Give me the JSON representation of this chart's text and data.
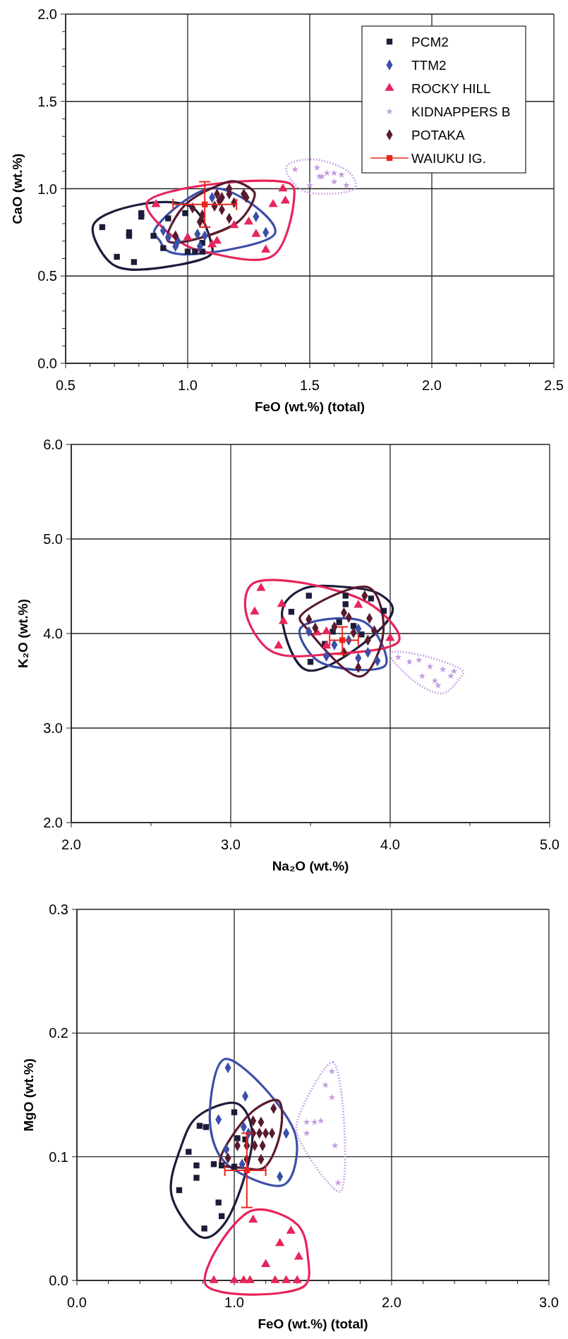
{
  "chart_data": [
    {
      "type": "scatter",
      "xlabel": "FeO (wt.%) (total)",
      "ylabel": "CaO (wt.%)",
      "xlim": [
        0.5,
        2.5
      ],
      "ylim": [
        0,
        2
      ],
      "grid": true,
      "legend": "top right",
      "xticks": [
        {
          "value": 0.5,
          "label": "0.5"
        },
        {
          "value": 0.6,
          "label": null
        },
        {
          "value": 0.7,
          "label": null
        },
        {
          "value": 0.8,
          "label": null
        },
        {
          "value": 0.9,
          "label": null
        },
        {
          "value": 1,
          "label": "1.0"
        },
        {
          "value": 1.1,
          "label": null
        },
        {
          "value": 1.2,
          "label": null
        },
        {
          "value": 1.3,
          "label": null
        },
        {
          "value": 1.4,
          "label": null
        },
        {
          "value": 1.5,
          "label": "1.5"
        },
        {
          "value": 1.6,
          "label": null
        },
        {
          "value": 1.7,
          "label": null
        },
        {
          "value": 1.8,
          "label": null
        },
        {
          "value": 1.9,
          "label": null
        },
        {
          "value": 2,
          "label": "2.0"
        },
        {
          "value": 2.1,
          "label": null
        },
        {
          "value": 2.2,
          "label": null
        },
        {
          "value": 2.3,
          "label": null
        },
        {
          "value": 2.4,
          "label": null
        },
        {
          "value": 2.5,
          "label": "2.5"
        }
      ],
      "yticks": [
        {
          "value": 0,
          "label": "0.0"
        },
        {
          "value": 0.1,
          "label": null
        },
        {
          "value": 0.2,
          "label": null
        },
        {
          "value": 0.3,
          "label": null
        },
        {
          "value": 0.4,
          "label": null
        },
        {
          "value": 0.5,
          "label": "0.5"
        },
        {
          "value": 0.6,
          "label": null
        },
        {
          "value": 0.7,
          "label": null
        },
        {
          "value": 0.8,
          "label": null
        },
        {
          "value": 0.9,
          "label": null
        },
        {
          "value": 1,
          "label": "1.0"
        },
        {
          "value": 1.1,
          "label": null
        },
        {
          "value": 1.2,
          "label": null
        },
        {
          "value": 1.3,
          "label": null
        },
        {
          "value": 1.4,
          "label": null
        },
        {
          "value": 1.5,
          "label": "1.5"
        },
        {
          "value": 1.6,
          "label": null
        },
        {
          "value": 1.7,
          "label": null
        },
        {
          "value": 1.8,
          "label": null
        },
        {
          "value": 1.9,
          "label": null
        },
        {
          "value": 2,
          "label": "2.0"
        }
      ],
      "series": [
        {
          "name": "PCM2",
          "color": "#1c1c3a",
          "marker": "square",
          "x": [
            0.65,
            0.71,
            0.76,
            0.76,
            0.78,
            0.81,
            0.81,
            0.86,
            0.9,
            0.92,
            0.99,
            1.0,
            1.03,
            1.06,
            1.06
          ],
          "values": [
            0.78,
            0.61,
            0.75,
            0.73,
            0.58,
            0.84,
            0.86,
            0.73,
            0.66,
            0.83,
            0.86,
            0.64,
            0.64,
            0.69,
            0.64
          ]
        },
        {
          "name": "TTM2",
          "color": "#3b4fa8",
          "marker": "diamond",
          "x": [
            0.9,
            0.92,
            0.96,
            0.95,
            1.04,
            1.05,
            1.07,
            1.1,
            1.28,
            1.32
          ],
          "values": [
            0.76,
            0.72,
            0.7,
            0.67,
            0.74,
            0.67,
            0.73,
            0.95,
            0.84,
            0.75
          ]
        },
        {
          "name": "ROCKY HILL",
          "color": "#e8245a",
          "marker": "triangle",
          "x": [
            0.87,
            1.0,
            1.1,
            1.12,
            1.19,
            1.25,
            1.28,
            1.35,
            1.32,
            1.39,
            1.4
          ],
          "values": [
            0.91,
            0.72,
            0.68,
            0.7,
            0.79,
            0.81,
            0.74,
            0.91,
            0.65,
            1.0,
            0.93
          ]
        },
        {
          "name": "KIDNAPPERS B",
          "color": "#c49be0",
          "marker": "star",
          "line_style": "dotted",
          "x": [
            1.44,
            1.5,
            1.53,
            1.54,
            1.55,
            1.57,
            1.6,
            1.63,
            1.6,
            1.65
          ],
          "values": [
            1.11,
            1.02,
            1.12,
            1.07,
            1.07,
            1.09,
            1.09,
            1.08,
            1.04,
            1.02
          ]
        },
        {
          "name": "POTAKA",
          "color": "#5a1a2e",
          "marker": "diamond",
          "x": [
            0.95,
            1.02,
            1.05,
            1.06,
            1.11,
            1.12,
            1.14,
            1.14,
            1.17,
            1.17,
            1.19,
            1.17,
            1.23,
            1.24,
            1.13
          ],
          "values": [
            0.73,
            0.89,
            0.81,
            0.85,
            0.9,
            0.97,
            0.88,
            0.95,
            0.97,
            1.0,
            0.92,
            0.83,
            0.97,
            0.95,
            0.93
          ]
        },
        {
          "name": "WAIUKU IG.",
          "color": "#e8281e",
          "marker": "square",
          "x": [
            1.07
          ],
          "values": [
            0.91
          ],
          "errors": [
            [
              0.78,
              1.04
            ]
          ],
          "xerrors": [
            [
              0.94,
              1.2
            ]
          ]
        }
      ]
    },
    {
      "type": "scatter",
      "xlabel": "Na₂O (wt.%)",
      "ylabel": "K₂O (wt.%)",
      "xlim": [
        2,
        5
      ],
      "ylim": [
        2,
        6
      ],
      "grid": true,
      "xticks": [
        {
          "value": 2,
          "label": "2.0"
        },
        {
          "value": 2.5,
          "label": null
        },
        {
          "value": 3,
          "label": "3.0"
        },
        {
          "value": 3.5,
          "label": null
        },
        {
          "value": 4,
          "label": "4.0"
        },
        {
          "value": 4.5,
          "label": null
        },
        {
          "value": 5,
          "label": "5.0"
        }
      ],
      "yticks": [
        {
          "value": 2,
          "label": "2.0"
        },
        {
          "value": 3,
          "label": "3.0"
        },
        {
          "value": 4,
          "label": "4.0"
        },
        {
          "value": 5,
          "label": "5.0"
        },
        {
          "value": 6,
          "label": "6.0"
        }
      ],
      "series": [
        {
          "color": "#1c1c3a",
          "marker": "square",
          "x": [
            3.49,
            3.38,
            3.72,
            3.72,
            3.88,
            3.96,
            3.64,
            3.59,
            3.68,
            3.82,
            3.5,
            3.77
          ],
          "values": [
            4.4,
            4.23,
            4.4,
            4.31,
            4.37,
            4.24,
            4.02,
            3.89,
            4.12,
            3.99,
            3.7,
            4.08
          ]
        },
        {
          "color": "#3b4fa8",
          "marker": "diamond",
          "x": [
            3.49,
            3.65,
            3.74,
            3.6,
            3.8,
            3.86,
            3.92,
            3.8
          ],
          "values": [
            4.02,
            3.88,
            3.93,
            3.76,
            4.05,
            3.8,
            3.71,
            3.74
          ]
        },
        {
          "color": "#e8245a",
          "marker": "triangle",
          "x": [
            3.19,
            3.15,
            3.32,
            3.33,
            3.3,
            3.54,
            3.6,
            3.6,
            3.8,
            4.0
          ],
          "values": [
            4.48,
            4.23,
            4.31,
            4.13,
            3.87,
            4.01,
            4.02,
            3.87,
            4.3,
            3.95
          ]
        },
        {
          "color": "#c49be0",
          "marker": "star",
          "line_style": "dotted",
          "x": [
            4.05,
            4.12,
            4.18,
            4.25,
            4.33,
            4.38,
            4.2,
            4.3,
            4.28,
            4.4
          ],
          "values": [
            3.75,
            3.7,
            3.72,
            3.65,
            3.62,
            3.55,
            3.55,
            3.45,
            3.5,
            3.6
          ]
        },
        {
          "color": "#5a1a2e",
          "marker": "diamond",
          "x": [
            3.84,
            3.71,
            3.74,
            3.87,
            3.49,
            3.53,
            3.77,
            3.9,
            3.86,
            3.71,
            3.8,
            3.65
          ],
          "values": [
            4.4,
            4.22,
            4.17,
            4.16,
            4.15,
            4.06,
            4.01,
            4.03,
            3.93,
            3.8,
            3.64,
            4.07
          ]
        },
        {
          "color": "#e8281e",
          "marker": "square",
          "x": [
            3.7
          ],
          "values": [
            3.93
          ],
          "errors": [
            [
              3.78,
              4.07
            ]
          ],
          "xerrors": [
            [
              3.62,
              3.8
            ]
          ]
        }
      ]
    },
    {
      "type": "scatter",
      "xlabel": "FeO (wt.%) (total)",
      "ylabel": "MgO (wt.%)",
      "xlim": [
        0,
        3
      ],
      "ylim": [
        0,
        0.3
      ],
      "grid": true,
      "xticks": [
        {
          "value": 0,
          "label": "0.0"
        },
        {
          "value": 0.2,
          "label": null
        },
        {
          "value": 0.4,
          "label": null
        },
        {
          "value": 0.6,
          "label": null
        },
        {
          "value": 0.8,
          "label": null
        },
        {
          "value": 1,
          "label": "1.0"
        },
        {
          "value": 1.2,
          "label": null
        },
        {
          "value": 1.4,
          "label": null
        },
        {
          "value": 1.6,
          "label": null
        },
        {
          "value": 1.8,
          "label": null
        },
        {
          "value": 2,
          "label": "2.0"
        },
        {
          "value": 2.2,
          "label": null
        },
        {
          "value": 2.4,
          "label": null
        },
        {
          "value": 2.6,
          "label": null
        },
        {
          "value": 2.8,
          "label": null
        },
        {
          "value": 3,
          "label": "3.0"
        }
      ],
      "yticks": [
        {
          "value": 0,
          "label": "0.0"
        },
        {
          "value": 0.1,
          "label": "0.1"
        },
        {
          "value": 0.2,
          "label": "0.2"
        },
        {
          "value": 0.3,
          "label": "0.3"
        }
      ],
      "series": [
        {
          "color": "#1c1c3a",
          "marker": "square",
          "x": [
            1.0,
            0.78,
            0.82,
            0.71,
            0.76,
            0.76,
            0.87,
            0.92,
            1.0,
            1.02,
            1.07,
            0.65,
            0.9,
            0.92,
            0.81
          ],
          "values": [
            0.136,
            0.125,
            0.124,
            0.104,
            0.093,
            0.083,
            0.094,
            0.093,
            0.092,
            0.115,
            0.114,
            0.073,
            0.063,
            0.052,
            0.042
          ]
        },
        {
          "color": "#3b4fa8",
          "marker": "diamond",
          "x": [
            0.96,
            1.07,
            0.9,
            1.06,
            1.09,
            1.33,
            0.95,
            1.05,
            1.29
          ],
          "values": [
            0.172,
            0.149,
            0.13,
            0.124,
            0.119,
            0.119,
            0.106,
            0.094,
            0.084
          ]
        },
        {
          "color": "#e8245a",
          "marker": "triangle",
          "x": [
            1.12,
            1.36,
            1.29,
            1.41,
            1.2,
            0.87,
            1.0,
            1.06,
            1.1,
            1.26,
            1.33,
            1.4
          ],
          "values": [
            0.049,
            0.04,
            0.03,
            0.019,
            0.013,
            0,
            0,
            0,
            0,
            0,
            0,
            0
          ]
        },
        {
          "color": "#c49be0",
          "marker": "star",
          "line_style": "dotted",
          "x": [
            1.62,
            1.58,
            1.62,
            1.46,
            1.51,
            1.55,
            1.46,
            1.64,
            1.66
          ],
          "values": [
            0.169,
            0.158,
            0.148,
            0.128,
            0.128,
            0.129,
            0.119,
            0.109,
            0.079
          ]
        },
        {
          "color": "#5a1a2e",
          "marker": "diamond",
          "x": [
            1.25,
            1.12,
            1.17,
            1.16,
            1.2,
            1.24,
            1.12,
            1.02,
            1.08,
            1.13,
            1.18,
            1.08,
            1.17,
            0.96
          ],
          "values": [
            0.139,
            0.129,
            0.128,
            0.119,
            0.119,
            0.119,
            0.119,
            0.109,
            0.109,
            0.109,
            0.109,
            0.098,
            0.098,
            0.099
          ]
        },
        {
          "color": "#e8281e",
          "marker": "square",
          "x": [
            1.08
          ],
          "values": [
            0.089
          ],
          "errors": [
            [
              0.059,
              0.119
            ]
          ],
          "xerrors": [
            [
              0.94,
              1.2
            ]
          ]
        }
      ]
    }
  ]
}
